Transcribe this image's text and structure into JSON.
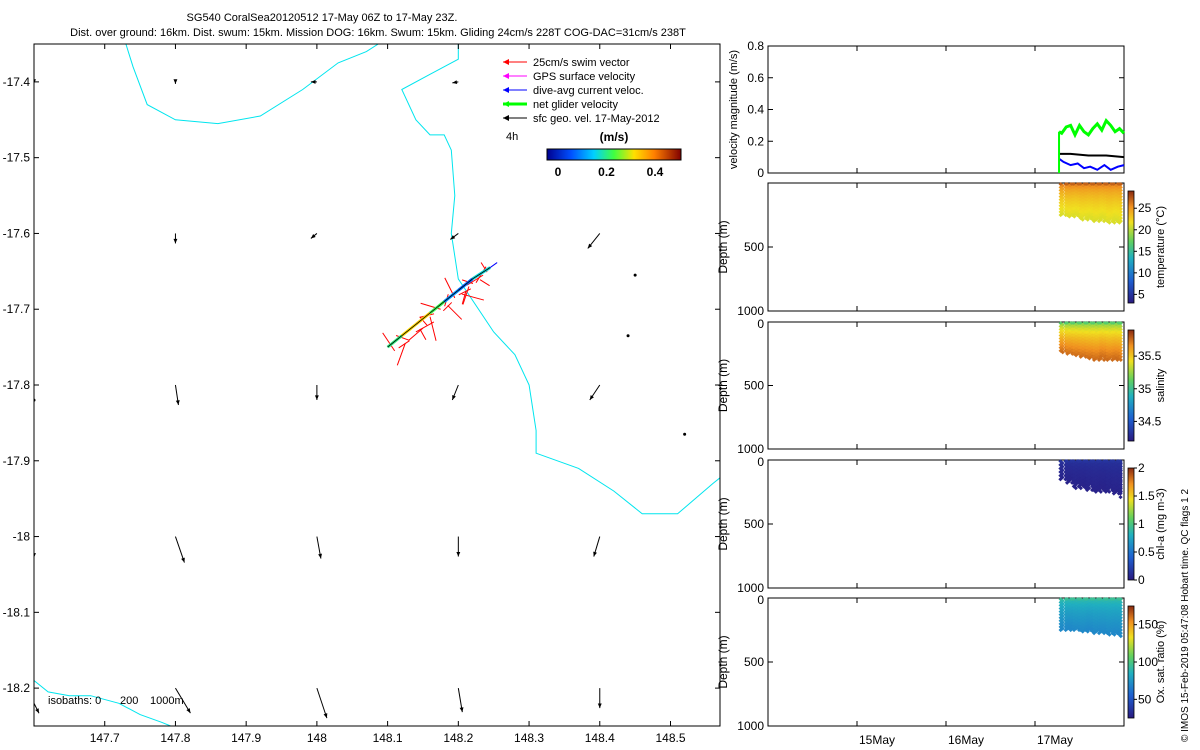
{
  "header": {
    "title": "SG540 CoralSea20120512 17-May 06Z to 17-May 23Z.",
    "subtitle": "Dist. over ground: 16km. Dist. swum: 15km. Mission DOG: 16km. Swum: 15km. Gliding 24cm/s 228T COG-DAC=31cm/s 238T"
  },
  "footer_note": "© IMOS 15-Feb-2019 05:47:08 Hobart time. QC flags 1  2",
  "colors": {
    "coast": "#00e5ee",
    "swim": "#ff0000",
    "gps": "#ff00ff",
    "dac": "#0000ff",
    "net": "#00ff00",
    "sfc": "#000000"
  },
  "chart_data": [
    {
      "type": "line",
      "panel": "map",
      "xlim": [
        147.6,
        148.57
      ],
      "ylim": [
        -18.25,
        -17.35
      ],
      "xticks": [
        "147.7",
        "147.8",
        "147.9",
        "148",
        "148.1",
        "148.2",
        "148.3",
        "148.4",
        "148.5"
      ],
      "yticks": [
        "-17.4",
        "-17.5",
        "-17.6",
        "-17.7",
        "-17.8",
        "-17.9",
        "-18",
        "-18.1",
        "-18.2"
      ],
      "legend": {
        "position": "top-right",
        "entries": [
          "25cm/s swim vector",
          "GPS surface velocity",
          "dive-avg current veloc.",
          "net glider velocity",
          "sfc geo. vel. 17-May-2012"
        ],
        "time_step": "4h",
        "colorbar_title": "(m/s)",
        "colorbar_ticks": [
          "0",
          "0.2",
          "0.4"
        ]
      },
      "isobaths": {
        "label": "isobaths: 0",
        "levels": [
          "200",
          "1000m"
        ]
      },
      "coastline_main": [
        [
          147.73,
          -17.35
        ],
        [
          147.74,
          -17.38
        ],
        [
          147.76,
          -17.43
        ],
        [
          147.8,
          -17.45
        ],
        [
          147.86,
          -17.455
        ],
        [
          147.92,
          -17.445
        ],
        [
          147.98,
          -17.41
        ],
        [
          148.03,
          -17.375
        ],
        [
          148.07,
          -17.36
        ],
        [
          148.12,
          -17.33
        ],
        [
          148.15,
          -17.34
        ]
      ],
      "coastline_east": [
        [
          148.2,
          -17.33
        ],
        [
          148.2,
          -17.37
        ],
        [
          148.16,
          -17.39
        ],
        [
          148.12,
          -17.41
        ],
        [
          148.14,
          -17.45
        ],
        [
          148.16,
          -17.47
        ],
        [
          148.18,
          -17.47
        ],
        [
          148.19,
          -17.49
        ],
        [
          148.195,
          -17.55
        ],
        [
          148.19,
          -17.6
        ],
        [
          148.2,
          -17.66
        ],
        [
          148.25,
          -17.73
        ],
        [
          148.28,
          -17.76
        ],
        [
          148.3,
          -17.8
        ],
        [
          148.31,
          -17.86
        ],
        [
          148.31,
          -17.89
        ],
        [
          148.37,
          -17.91
        ],
        [
          148.42,
          -17.94
        ],
        [
          148.46,
          -17.97
        ],
        [
          148.51,
          -17.97
        ],
        [
          148.56,
          -17.93
        ],
        [
          148.6,
          -17.9
        ]
      ],
      "coastline_south": [
        [
          147.6,
          -18.19
        ],
        [
          147.62,
          -18.205
        ],
        [
          147.65,
          -18.21
        ],
        [
          147.68,
          -18.21
        ],
        [
          147.72,
          -18.22
        ],
        [
          147.75,
          -18.235
        ],
        [
          147.78,
          -18.245
        ],
        [
          147.82,
          -18.26
        ]
      ],
      "glider_track": [
        [
          148.1,
          -17.75
        ],
        [
          148.12,
          -17.735
        ],
        [
          148.14,
          -17.72
        ],
        [
          148.16,
          -17.705
        ],
        [
          148.18,
          -17.69
        ],
        [
          148.2,
          -17.675
        ],
        [
          148.22,
          -17.66
        ],
        [
          148.245,
          -17.645
        ]
      ],
      "swim_vectors_from": [
        [
          148.11,
          -17.755
        ],
        [
          148.125,
          -17.745
        ],
        [
          148.14,
          -17.73
        ],
        [
          148.15,
          -17.725
        ],
        [
          148.16,
          -17.71
        ],
        [
          148.175,
          -17.7
        ],
        [
          148.185,
          -17.695
        ],
        [
          148.195,
          -17.685
        ],
        [
          148.205,
          -17.68
        ],
        [
          148.215,
          -17.67
        ],
        [
          148.225,
          -17.665
        ],
        [
          148.235,
          -17.655
        ]
      ],
      "surface_velocity_vectors": [
        {
          "lon": 147.6,
          "lat": -17.4,
          "u": 0.0,
          "v": -0.002
        },
        {
          "lon": 147.8,
          "lat": -17.4,
          "u": 0.0,
          "v": -0.002
        },
        {
          "lon": 148.0,
          "lat": -17.4,
          "u": -0.006,
          "v": 0.0
        },
        {
          "lon": 148.2,
          "lat": -17.4,
          "u": -0.006,
          "v": -0.001
        },
        {
          "lon": 147.8,
          "lat": -17.6,
          "u": 0.0,
          "v": -0.01
        },
        {
          "lon": 148.0,
          "lat": -17.6,
          "u": -0.006,
          "v": -0.005
        },
        {
          "lon": 148.2,
          "lat": -17.6,
          "u": -0.008,
          "v": -0.006
        },
        {
          "lon": 148.4,
          "lat": -17.6,
          "u": -0.012,
          "v": -0.015
        },
        {
          "lon": 148.45,
          "lat": -17.655,
          "u": 0.0,
          "v": 0.0
        },
        {
          "lon": 148.44,
          "lat": -17.735,
          "u": 0.0,
          "v": 0.0
        },
        {
          "lon": 147.6,
          "lat": -17.82,
          "u": 0.0,
          "v": 0.0
        },
        {
          "lon": 147.8,
          "lat": -17.8,
          "u": 0.003,
          "v": -0.02
        },
        {
          "lon": 148.0,
          "lat": -17.8,
          "u": 0.0,
          "v": -0.015
        },
        {
          "lon": 148.2,
          "lat": -17.8,
          "u": -0.006,
          "v": -0.015
        },
        {
          "lon": 148.4,
          "lat": -17.8,
          "u": -0.01,
          "v": -0.015
        },
        {
          "lon": 148.52,
          "lat": -17.865,
          "u": 0.0,
          "v": 0.0
        },
        {
          "lon": 147.6,
          "lat": -18.02,
          "u": 0.0,
          "v": -0.006
        },
        {
          "lon": 147.8,
          "lat": -18.0,
          "u": 0.009,
          "v": -0.026
        },
        {
          "lon": 148.0,
          "lat": -18.0,
          "u": 0.004,
          "v": -0.022
        },
        {
          "lon": 148.2,
          "lat": -18.0,
          "u": 0.0,
          "v": -0.02
        },
        {
          "lon": 148.4,
          "lat": -18.0,
          "u": -0.006,
          "v": -0.02
        },
        {
          "lon": 147.6,
          "lat": -18.22,
          "u": 0.005,
          "v": -0.01
        },
        {
          "lon": 147.8,
          "lat": -18.2,
          "u": 0.015,
          "v": -0.025
        },
        {
          "lon": 148.0,
          "lat": -18.2,
          "u": 0.01,
          "v": -0.03
        },
        {
          "lon": 148.2,
          "lat": -18.2,
          "u": 0.004,
          "v": -0.024
        },
        {
          "lon": 148.4,
          "lat": -18.2,
          "u": 0.0,
          "v": -0.02
        }
      ]
    },
    {
      "type": "line",
      "panel": "velocity",
      "ylabel": "velocity magnitude (m/s)",
      "ylim": [
        0,
        0.8
      ],
      "yticks": [
        "0",
        "0.2",
        "0.4",
        "0.6",
        "0.8"
      ],
      "xlim": [
        14.0,
        18.0
      ],
      "series": [
        {
          "color": "#00ff00",
          "x": [
            17.27,
            17.3,
            17.35,
            17.4,
            17.45,
            17.5,
            17.55,
            17.6,
            17.65,
            17.7,
            17.75,
            17.8,
            17.85,
            17.9,
            17.95,
            18.0
          ],
          "values": [
            0.26,
            0.25,
            0.29,
            0.3,
            0.24,
            0.3,
            0.26,
            0.24,
            0.28,
            0.31,
            0.27,
            0.33,
            0.3,
            0.26,
            0.28,
            0.25
          ]
        },
        {
          "color": "#000000",
          "x": [
            17.27,
            17.4,
            17.6,
            17.8,
            18.0
          ],
          "values": [
            0.12,
            0.12,
            0.11,
            0.11,
            0.1
          ]
        },
        {
          "color": "#0000ff",
          "x": [
            17.27,
            17.32,
            17.4,
            17.48,
            17.55,
            17.62,
            17.7,
            17.78,
            17.85,
            17.93,
            18.0
          ],
          "values": [
            0.09,
            0.07,
            0.05,
            0.06,
            0.03,
            0.04,
            0.02,
            0.05,
            0.02,
            0.04,
            0.05
          ]
        }
      ]
    },
    {
      "type": "scatter",
      "panel": "temperature",
      "ylabel": "Depth (m)",
      "ylim": [
        1000,
        0
      ],
      "yticks": [
        "500",
        "1000"
      ],
      "colorbar_label": "temperature (°C)",
      "colorbar_ticks": [
        "5",
        "10",
        "15",
        "20",
        "25"
      ],
      "clim": [
        3,
        29
      ],
      "x_range": [
        17.27,
        18.0
      ],
      "depth_top": 10,
      "depth_bottom": [
        250,
        270,
        260,
        290,
        280,
        300,
        280,
        310,
        290,
        320
      ],
      "profile_spacing": 0.075,
      "depth_step": 12,
      "surface_value": 27,
      "bottom_value": 21
    },
    {
      "type": "scatter",
      "panel": "salinity",
      "ylabel": "Depth (m)",
      "ylim": [
        1000,
        0
      ],
      "yticks": [
        "0",
        "500",
        "1000"
      ],
      "colorbar_label": "salinity",
      "colorbar_ticks": [
        "34.5",
        "35",
        "35.5"
      ],
      "clim": [
        34.2,
        35.9
      ],
      "x_range": [
        17.27,
        18.0
      ],
      "depth_top": 10,
      "depth_bottom": [
        240,
        260,
        270,
        280,
        290,
        300,
        280,
        300,
        290,
        310
      ],
      "profile_spacing": 0.075,
      "depth_step": 12,
      "surface_value": 35.1,
      "bottom_value": 35.75
    },
    {
      "type": "scatter",
      "panel": "chlorophyll",
      "ylabel": "Depth (m)",
      "ylim": [
        1000,
        0
      ],
      "yticks": [
        "0",
        "500",
        "1000"
      ],
      "colorbar_label": "chl-a (mg m-3)",
      "colorbar_ticks": [
        "0",
        "0.5",
        "1",
        "1.5",
        "2"
      ],
      "clim": [
        0,
        2
      ],
      "x_range": [
        17.27,
        18.0
      ],
      "depth_top": 10,
      "depth_bottom": [
        160,
        190,
        220,
        200,
        240,
        250,
        220,
        260,
        270,
        300
      ],
      "profile_spacing": 0.075,
      "depth_step": 14,
      "surface_value": 0.15,
      "bottom_value": 0.05
    },
    {
      "type": "scatter",
      "panel": "oxygen",
      "ylabel": "Depth (m)",
      "ylim": [
        1000,
        0
      ],
      "yticks": [
        "0",
        "500",
        "1000"
      ],
      "colorbar_label": "Ox. sat. ratio (%)",
      "colorbar_ticks": [
        "50",
        "100",
        "150"
      ],
      "clim": [
        25,
        175
      ],
      "x_range": [
        17.27,
        18.0
      ],
      "depth_top": 10,
      "depth_bottom": [
        250,
        240,
        260,
        270,
        250,
        280,
        270,
        290,
        280,
        300
      ],
      "profile_spacing": 0.075,
      "depth_step": 12,
      "surface_value": 95,
      "bottom_value": 70,
      "xticks": [
        "15May",
        "16May",
        "17May"
      ],
      "xtick_values": [
        15,
        16,
        17
      ]
    }
  ]
}
